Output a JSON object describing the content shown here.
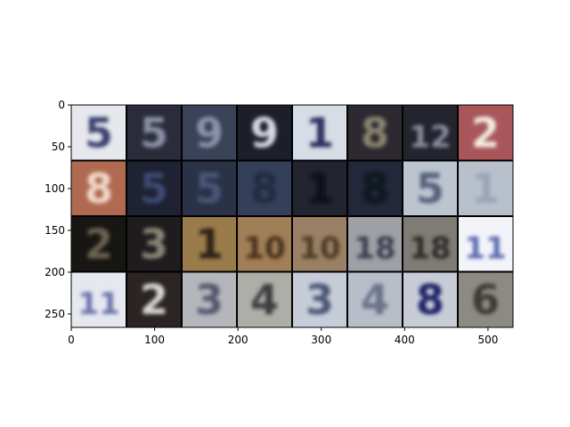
{
  "image_grid": {
    "rows": 4,
    "cols": 8,
    "x_ticks": [
      "0",
      "100",
      "200",
      "300",
      "400",
      "500"
    ],
    "y_ticks": [
      "0",
      "50",
      "100",
      "150",
      "200",
      "250"
    ],
    "x_tick_values": [
      0,
      100,
      200,
      300,
      400,
      500
    ],
    "y_tick_values": [
      0,
      50,
      100,
      150,
      200,
      250
    ],
    "x_range": [
      0,
      530
    ],
    "y_range": [
      0,
      266
    ],
    "tiles": [
      {
        "digit": "5",
        "bg": "#e6e8ee",
        "fg": "#3a3f6e"
      },
      {
        "digit": "5",
        "bg": "#2a2c3a",
        "fg": "#8c90a8"
      },
      {
        "digit": "9",
        "bg": "#3a4258",
        "fg": "#8a93ad"
      },
      {
        "digit": "9",
        "bg": "#1c1e2a",
        "fg": "#d8dae6"
      },
      {
        "digit": "1",
        "bg": "#d7dde6",
        "fg": "#2e2f5e"
      },
      {
        "digit": "8",
        "bg": "#2c2a30",
        "fg": "#8a8470"
      },
      {
        "digit": "12",
        "bg": "#22242e",
        "fg": "#8b8d9e"
      },
      {
        "digit": "2",
        "bg": "#a8565a",
        "fg": "#f2ece2"
      },
      {
        "digit": "8",
        "bg": "#b06a52",
        "fg": "#f0d8c8"
      },
      {
        "digit": "5",
        "bg": "#1e2232",
        "fg": "#3e4a72"
      },
      {
        "digit": "5",
        "bg": "#2a3248",
        "fg": "#4a5678"
      },
      {
        "digit": "8",
        "bg": "#34405a",
        "fg": "#222a40"
      },
      {
        "digit": "1",
        "bg": "#222430",
        "fg": "#0c0e16"
      },
      {
        "digit": "8",
        "bg": "#22283a",
        "fg": "#10141e"
      },
      {
        "digit": "5",
        "bg": "#bcc4d0",
        "fg": "#56607a"
      },
      {
        "digit": "1",
        "bg": "#b8c0cc",
        "fg": "#9aa4b6"
      },
      {
        "digit": "2",
        "bg": "#181612",
        "fg": "#6a6250"
      },
      {
        "digit": "3",
        "bg": "#1e1c1e",
        "fg": "#8a8476"
      },
      {
        "digit": "1",
        "bg": "#9a7c4c",
        "fg": "#2e2418"
      },
      {
        "digit": "10",
        "bg": "#a07e56",
        "fg": "#46321e"
      },
      {
        "digit": "10",
        "bg": "#9a8064",
        "fg": "#4e3a26"
      },
      {
        "digit": "18",
        "bg": "#9ea0a6",
        "fg": "#3c3e4e"
      },
      {
        "digit": "18",
        "bg": "#7e7c74",
        "fg": "#2e2c2a"
      },
      {
        "digit": "11",
        "bg": "#f2f4fa",
        "fg": "#5a6aae"
      },
      {
        "digit": "11",
        "bg": "#e6e8f0",
        "fg": "#6a72a8"
      },
      {
        "digit": "2",
        "bg": "#2a2422",
        "fg": "#d8d6d2"
      },
      {
        "digit": "3",
        "bg": "#b4b6bc",
        "fg": "#54586e"
      },
      {
        "digit": "4",
        "bg": "#aeaea8",
        "fg": "#3e3e40"
      },
      {
        "digit": "3",
        "bg": "#c6ccd8",
        "fg": "#4c5676"
      },
      {
        "digit": "4",
        "bg": "#b8bec8",
        "fg": "#6a7288"
      },
      {
        "digit": "8",
        "bg": "#c8ccd6",
        "fg": "#1e2266"
      },
      {
        "digit": "6",
        "bg": "#8c8a82",
        "fg": "#3c3a36"
      }
    ]
  }
}
